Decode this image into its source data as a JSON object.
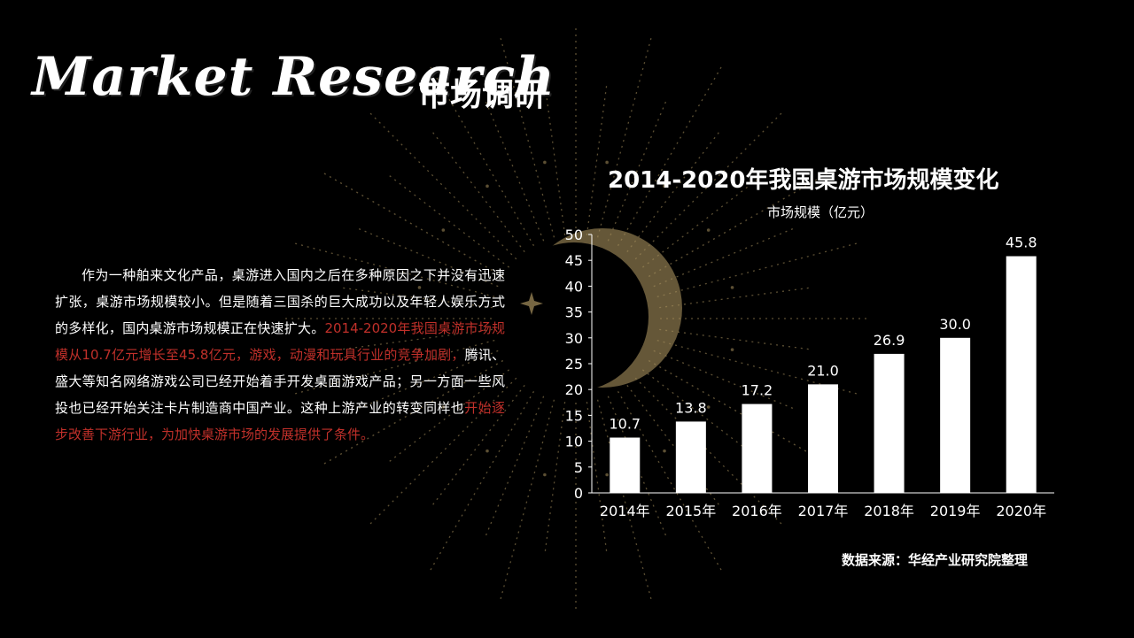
{
  "header": {
    "title_en": "Market Research",
    "title_zh": "市场调研"
  },
  "body": {
    "p1": "作为一种舶来文化产品，桌游进入国内之后在多种原因之下并没有迅速扩张，桌游市场规模较小。但是随着三国杀的巨大成功以及年轻人娱乐方式的多样化，国内桌游市场规模正在快速扩大。",
    "p2_highlight": "2014-2020年我国桌游市场规模从10.7亿元增长至45.8亿元，游戏，动漫和玩具行业的竞争加剧，",
    "p3": "腾讯、盛大等知名网络游戏公司已经开始着手开发桌面游戏产品；另一方面一些风投也已经开始关注卡片制造商中国产业。这种上游产业的转变同样也",
    "p4_highlight": "开始逐步改善下游行业，为加快桌游市场的发展提供了条件。"
  },
  "colors": {
    "background": "#000000",
    "bar": "#ffffff",
    "highlight_text": "#c0302a",
    "ornament": "#a8915e"
  },
  "chart_data": {
    "type": "bar",
    "title": "2014-2020年我国桌游市场规模变化",
    "ylabel": "市场规模（亿元）",
    "xlabel": "",
    "categories": [
      "2014年",
      "2015年",
      "2016年",
      "2017年",
      "2018年",
      "2019年",
      "2020年"
    ],
    "values": [
      10.7,
      13.8,
      17.2,
      21.0,
      26.9,
      30.0,
      45.8
    ],
    "value_labels": [
      "10.7",
      "13.8",
      "17.2",
      "21.0",
      "26.9",
      "30.0",
      "45.8"
    ],
    "ylim": [
      0,
      50
    ],
    "yticks": [
      0,
      5,
      10,
      15,
      20,
      25,
      30,
      35,
      40,
      45,
      50
    ],
    "grid": false,
    "legend": "none"
  },
  "source": "数据来源：华经产业研究院整理"
}
